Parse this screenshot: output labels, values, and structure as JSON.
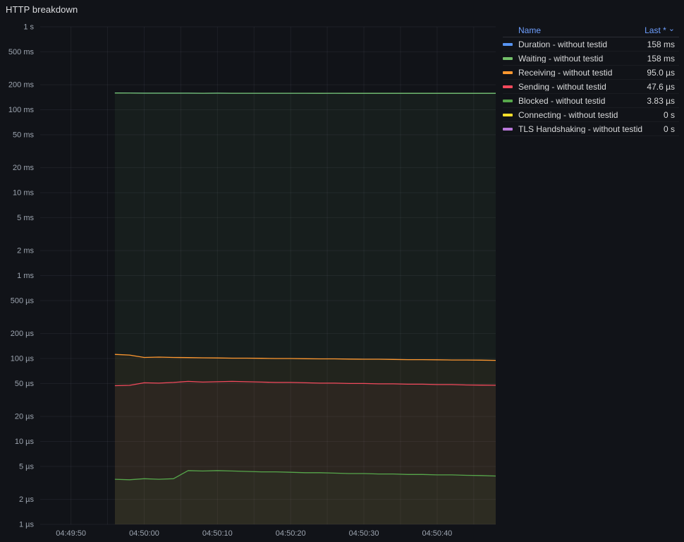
{
  "panel": {
    "title": "HTTP breakdown"
  },
  "colors": {
    "link": "#6E9FFF",
    "background": "#111318",
    "grid": "rgba(204,204,220,0.07)",
    "axis_text": "#9da5b0"
  },
  "legend": {
    "name_header": "Name",
    "last_header": "Last *",
    "sort_icon": "⌄",
    "rows": [
      {
        "label": "Duration - without testid",
        "color": "#5794F2",
        "last": "158 ms"
      },
      {
        "label": "Waiting - without testid",
        "color": "#73BF69",
        "last": "158 ms"
      },
      {
        "label": "Receiving - without testid",
        "color": "#FF9830",
        "last": "95.0 µs"
      },
      {
        "label": "Sending - without testid",
        "color": "#F2495C",
        "last": "47.6 µs"
      },
      {
        "label": "Blocked - without testid",
        "color": "#56A64B",
        "last": "3.83 µs"
      },
      {
        "label": "Connecting - without testid",
        "color": "#FADE2A",
        "last": "0 s"
      },
      {
        "label": "TLS Handshaking - without testid",
        "color": "#B877D9",
        "last": "0 s"
      }
    ]
  },
  "chart_data": {
    "type": "line",
    "title": "HTTP breakdown",
    "y_scale": "log10",
    "y_unit": "µs",
    "y_domain_us": [
      1,
      1000000
    ],
    "x_domain_s": [
      -4.2,
      58
    ],
    "legend_position": "right",
    "grid": {
      "x_start_s": 0,
      "x_end_s": 55,
      "x_step_s": 5
    },
    "y_ticks": [
      {
        "label": "1 s",
        "value_us": 1000000
      },
      {
        "label": "500 ms",
        "value_us": 500000
      },
      {
        "label": "200 ms",
        "value_us": 200000
      },
      {
        "label": "100 ms",
        "value_us": 100000
      },
      {
        "label": "50 ms",
        "value_us": 50000
      },
      {
        "label": "20 ms",
        "value_us": 20000
      },
      {
        "label": "10 ms",
        "value_us": 10000
      },
      {
        "label": "5 ms",
        "value_us": 5000
      },
      {
        "label": "2 ms",
        "value_us": 2000
      },
      {
        "label": "1 ms",
        "value_us": 1000
      },
      {
        "label": "500 µs",
        "value_us": 500
      },
      {
        "label": "200 µs",
        "value_us": 200
      },
      {
        "label": "100 µs",
        "value_us": 100
      },
      {
        "label": "50 µs",
        "value_us": 50
      },
      {
        "label": "20 µs",
        "value_us": 20
      },
      {
        "label": "10 µs",
        "value_us": 10
      },
      {
        "label": "5 µs",
        "value_us": 5
      },
      {
        "label": "2 µs",
        "value_us": 2
      },
      {
        "label": "1 µs",
        "value_us": 1
      }
    ],
    "x_ticks": [
      {
        "label": "04:49:50",
        "t_s": 0
      },
      {
        "label": "04:50:00",
        "t_s": 10
      },
      {
        "label": "04:50:10",
        "t_s": 20
      },
      {
        "label": "04:50:20",
        "t_s": 30
      },
      {
        "label": "04:50:30",
        "t_s": 40
      },
      {
        "label": "04:50:40",
        "t_s": 50
      }
    ],
    "t_s": [
      6,
      8,
      10,
      12,
      14,
      16,
      18,
      20,
      22,
      24,
      26,
      28,
      30,
      32,
      34,
      36,
      38,
      40,
      42,
      44,
      46,
      48,
      50,
      52,
      54,
      56,
      58
    ],
    "series": [
      {
        "name": "duration",
        "color": "#5794F2",
        "fill_opacity": 0,
        "values_us": [
          159000,
          158800,
          158600,
          158500,
          158400,
          158600,
          158300,
          158400,
          158200,
          158300,
          158200,
          158100,
          158200,
          158100,
          158000,
          158100,
          158000,
          158000,
          157900,
          158000,
          157900,
          158000,
          157900,
          158000,
          157900,
          158000,
          158000
        ]
      },
      {
        "name": "waiting",
        "color": "#73BF69",
        "fill_opacity": 0.07,
        "values_us": [
          159000,
          158800,
          158600,
          158500,
          158400,
          158600,
          158300,
          158400,
          158200,
          158300,
          158200,
          158100,
          158200,
          158100,
          158000,
          158100,
          158000,
          158000,
          157900,
          158000,
          157900,
          158000,
          157900,
          158000,
          157900,
          158000,
          158000
        ]
      },
      {
        "name": "receiving",
        "color": "#FF9830",
        "fill_opacity": 0.05,
        "values_us": [
          112,
          110,
          103,
          104,
          103,
          102.5,
          102,
          101.5,
          101,
          101,
          100.5,
          100,
          100,
          99.5,
          99,
          99,
          98.5,
          98,
          98,
          97.5,
          97,
          97,
          96.5,
          96,
          96,
          95.5,
          95
        ]
      },
      {
        "name": "sending",
        "color": "#F2495C",
        "fill_opacity": 0.05,
        "values_us": [
          47,
          47.5,
          51,
          50.5,
          51.5,
          53,
          52,
          52.5,
          53,
          52.5,
          52,
          51.5,
          51.5,
          51,
          50.5,
          50.5,
          50,
          50,
          49.5,
          49.5,
          49,
          49,
          48.5,
          48.5,
          48,
          47.8,
          47.6
        ]
      },
      {
        "name": "blocked",
        "color": "#56A64B",
        "fill_opacity": 0.05,
        "values_us": [
          3.5,
          3.45,
          3.55,
          3.5,
          3.55,
          4.45,
          4.4,
          4.45,
          4.4,
          4.35,
          4.3,
          4.3,
          4.25,
          4.2,
          4.2,
          4.15,
          4.1,
          4.1,
          4.05,
          4.05,
          4.0,
          4.0,
          3.95,
          3.95,
          3.9,
          3.88,
          3.83
        ]
      },
      {
        "name": "connecting",
        "color": "#FADE2A",
        "fill_opacity": 0,
        "values_us": []
      },
      {
        "name": "tls-handshaking",
        "color": "#B877D9",
        "fill_opacity": 0,
        "values_us": []
      }
    ]
  }
}
